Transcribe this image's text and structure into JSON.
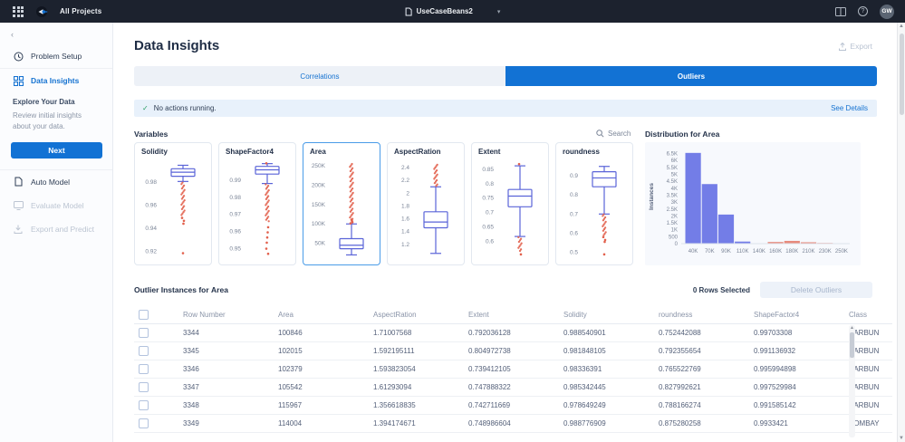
{
  "navbar": {
    "all_projects": "All Projects",
    "project_name": "UseCaseBeans2",
    "avatar_initials": "GW"
  },
  "sidebar": {
    "items": [
      {
        "label": "Problem Setup",
        "icon": "clock-icon",
        "state": "normal"
      },
      {
        "label": "Data Insights",
        "icon": "insights-icon",
        "state": "active"
      },
      {
        "label": "Auto Model",
        "icon": "document-icon",
        "state": "normal"
      },
      {
        "label": "Evaluate Model",
        "icon": "monitor-icon",
        "state": "disabled"
      },
      {
        "label": "Export and Predict",
        "icon": "download-icon",
        "state": "disabled"
      }
    ],
    "explore_title": "Explore Your Data",
    "explore_desc": "Review initial insights about your data.",
    "next_label": "Next"
  },
  "main": {
    "title": "Data Insights",
    "export_label": "Export",
    "tabs": [
      {
        "label": "Correlations",
        "active": false
      },
      {
        "label": "Outliers",
        "active": true
      }
    ],
    "banner": {
      "text": "No actions running.",
      "link": "See Details"
    },
    "variables_label": "Variables",
    "search_label": "Search",
    "distribution_title": "Distribution for Area"
  },
  "colors": {
    "accent_blue": "#1272d4",
    "box_stroke": "#5a64d8",
    "outlier_red": "#e2604c",
    "bar_blue": "#737de7",
    "bar_salmon": "#e78a7c",
    "check_green": "#2a9d64"
  },
  "table": {
    "title_prefix": "Outlier Instances for ",
    "title_var": "Area",
    "rows_selected": "0 Rows Selected",
    "delete_label": "Delete Outliers",
    "columns": [
      "Row Number",
      "Area",
      "AspectRation",
      "Extent",
      "Solidity",
      "roundness",
      "ShapeFactor4",
      "Class"
    ],
    "rows": [
      [
        "3344",
        "100846",
        "1.71007568",
        "0.792036128",
        "0.988540901",
        "0.752442088",
        "0.99703308",
        "BARBUN"
      ],
      [
        "3345",
        "102015",
        "1.592195111",
        "0.804972738",
        "0.981848105",
        "0.792355654",
        "0.991136932",
        "BARBUN"
      ],
      [
        "3346",
        "102379",
        "1.593823054",
        "0.739412105",
        "0.98336391",
        "0.765522769",
        "0.995994898",
        "BARBUN"
      ],
      [
        "3347",
        "105542",
        "1.61293094",
        "0.747888322",
        "0.985342445",
        "0.827992621",
        "0.997529984",
        "BARBUN"
      ],
      [
        "3348",
        "115967",
        "1.356618835",
        "0.742711669",
        "0.978649249",
        "0.788166274",
        "0.991585142",
        "BARBUN"
      ],
      [
        "3349",
        "114004",
        "1.394174671",
        "0.748986604",
        "0.988776909",
        "0.875280258",
        "0.9933421",
        "BOMBAY"
      ]
    ]
  },
  "chart_data": [
    {
      "type": "boxplot-group",
      "title": "Variables",
      "selected_variable": "Area",
      "plots": [
        {
          "name": "Solidity",
          "tick_labels": [
            "0.98",
            "0.96",
            "0.94",
            "0.92"
          ],
          "tick_values": [
            0.98,
            0.96,
            0.94,
            0.92
          ],
          "domain": [
            0.915,
            0.998
          ],
          "whisker_low": 0.9805,
          "q1": 0.985,
          "median": 0.9885,
          "q3": 0.9915,
          "whisker_high": 0.9945,
          "outlier_dense_range": [
            0.9515,
            0.9795
          ],
          "outlier_points": [
            0.949,
            0.9465,
            0.944,
            0.9185
          ]
        },
        {
          "name": "ShapeFactor4",
          "tick_labels": [
            "0.99",
            "0.98",
            "0.97",
            "0.96",
            "0.95"
          ],
          "tick_values": [
            0.99,
            0.98,
            0.97,
            0.96,
            0.95
          ],
          "domain": [
            0.945,
            1.001
          ],
          "whisker_low": 0.988,
          "q1": 0.9935,
          "median": 0.996,
          "q3": 0.998,
          "whisker_high": 0.9996,
          "outlier_dense_range": [
            0.966,
            0.9875
          ],
          "outlier_points": [
            0.9998,
            0.9625,
            0.9595,
            0.9565,
            0.9535,
            0.95,
            0.947
          ]
        },
        {
          "name": "Area",
          "tick_labels": [
            "250K",
            "200K",
            "150K",
            "100K",
            "50K"
          ],
          "tick_values": [
            250000,
            200000,
            150000,
            100000,
            50000
          ],
          "domain": [
            14000,
            262000
          ],
          "whisker_low": 20000,
          "q1": 36000,
          "median": 45000,
          "q3": 62000,
          "whisker_high": 100000,
          "outlier_dense_range": [
            113000,
            255000
          ],
          "outlier_points": [
            101500,
            104500,
            108000,
            111000
          ]
        },
        {
          "name": "AspectRation",
          "tick_labels": [
            "2.4",
            "2.2",
            "2",
            "1.8",
            "1.6",
            "1.4",
            "1.2"
          ],
          "tick_values": [
            2.4,
            2.2,
            2.0,
            1.8,
            1.6,
            1.4,
            1.2
          ],
          "domain": [
            1.0,
            2.5
          ],
          "whisker_low": 1.06,
          "q1": 1.46,
          "median": 1.55,
          "q3": 1.71,
          "whisker_high": 2.1,
          "outlier_dense_range": [
            2.115,
            2.445
          ],
          "outlier_points": []
        },
        {
          "name": "Extent",
          "tick_labels": [
            "0.85",
            "0.8",
            "0.75",
            "0.7",
            "0.65",
            "0.6"
          ],
          "tick_values": [
            0.85,
            0.8,
            0.75,
            0.7,
            0.65,
            0.6
          ],
          "domain": [
            0.545,
            0.878
          ],
          "whisker_low": 0.617,
          "q1": 0.72,
          "median": 0.757,
          "q3": 0.78,
          "whisker_high": 0.862,
          "outlier_dense_range": [
            0.567,
            0.614
          ],
          "outlier_points": [
            0.868,
            0.555
          ]
        },
        {
          "name": "roundness",
          "tick_labels": [
            "0.9",
            "0.8",
            "0.7",
            "0.6",
            "0.5"
          ],
          "tick_values": [
            0.9,
            0.8,
            0.7,
            0.6,
            0.5
          ],
          "domain": [
            0.475,
            0.975
          ],
          "whisker_low": 0.7,
          "q1": 0.842,
          "median": 0.888,
          "q3": 0.92,
          "whisker_high": 0.948,
          "outlier_dense_range": [
            0.59,
            0.698
          ],
          "outlier_points": [
            0.58,
            0.565,
            0.555,
            0.49
          ]
        }
      ]
    },
    {
      "type": "histogram",
      "title": "Distribution for Area",
      "ylabel": "Instances",
      "categories": [
        "40K",
        "70K",
        "90K",
        "110K",
        "140K",
        "160K",
        "180K",
        "210K",
        "230K",
        "250K"
      ],
      "values": [
        6550,
        4300,
        2100,
        150,
        30,
        120,
        200,
        100,
        50,
        30
      ],
      "bar_colors": [
        "blue",
        "blue",
        "blue",
        "blue",
        "salmon",
        "salmon",
        "salmon",
        "salmon",
        "salmon",
        "salmon"
      ],
      "ytick_labels": [
        "0",
        "500",
        "1K",
        "1.5K",
        "2K",
        "2.5K",
        "3K",
        "3.5K",
        "4K",
        "4.5K",
        "5K",
        "5.5K",
        "6K",
        "6.5K"
      ],
      "ytick_values": [
        0,
        500,
        1000,
        1500,
        2000,
        2500,
        3000,
        3500,
        4000,
        4500,
        5000,
        5500,
        6000,
        6500
      ],
      "ylim": [
        0,
        6800
      ],
      "grid": false,
      "legend": "none"
    }
  ]
}
